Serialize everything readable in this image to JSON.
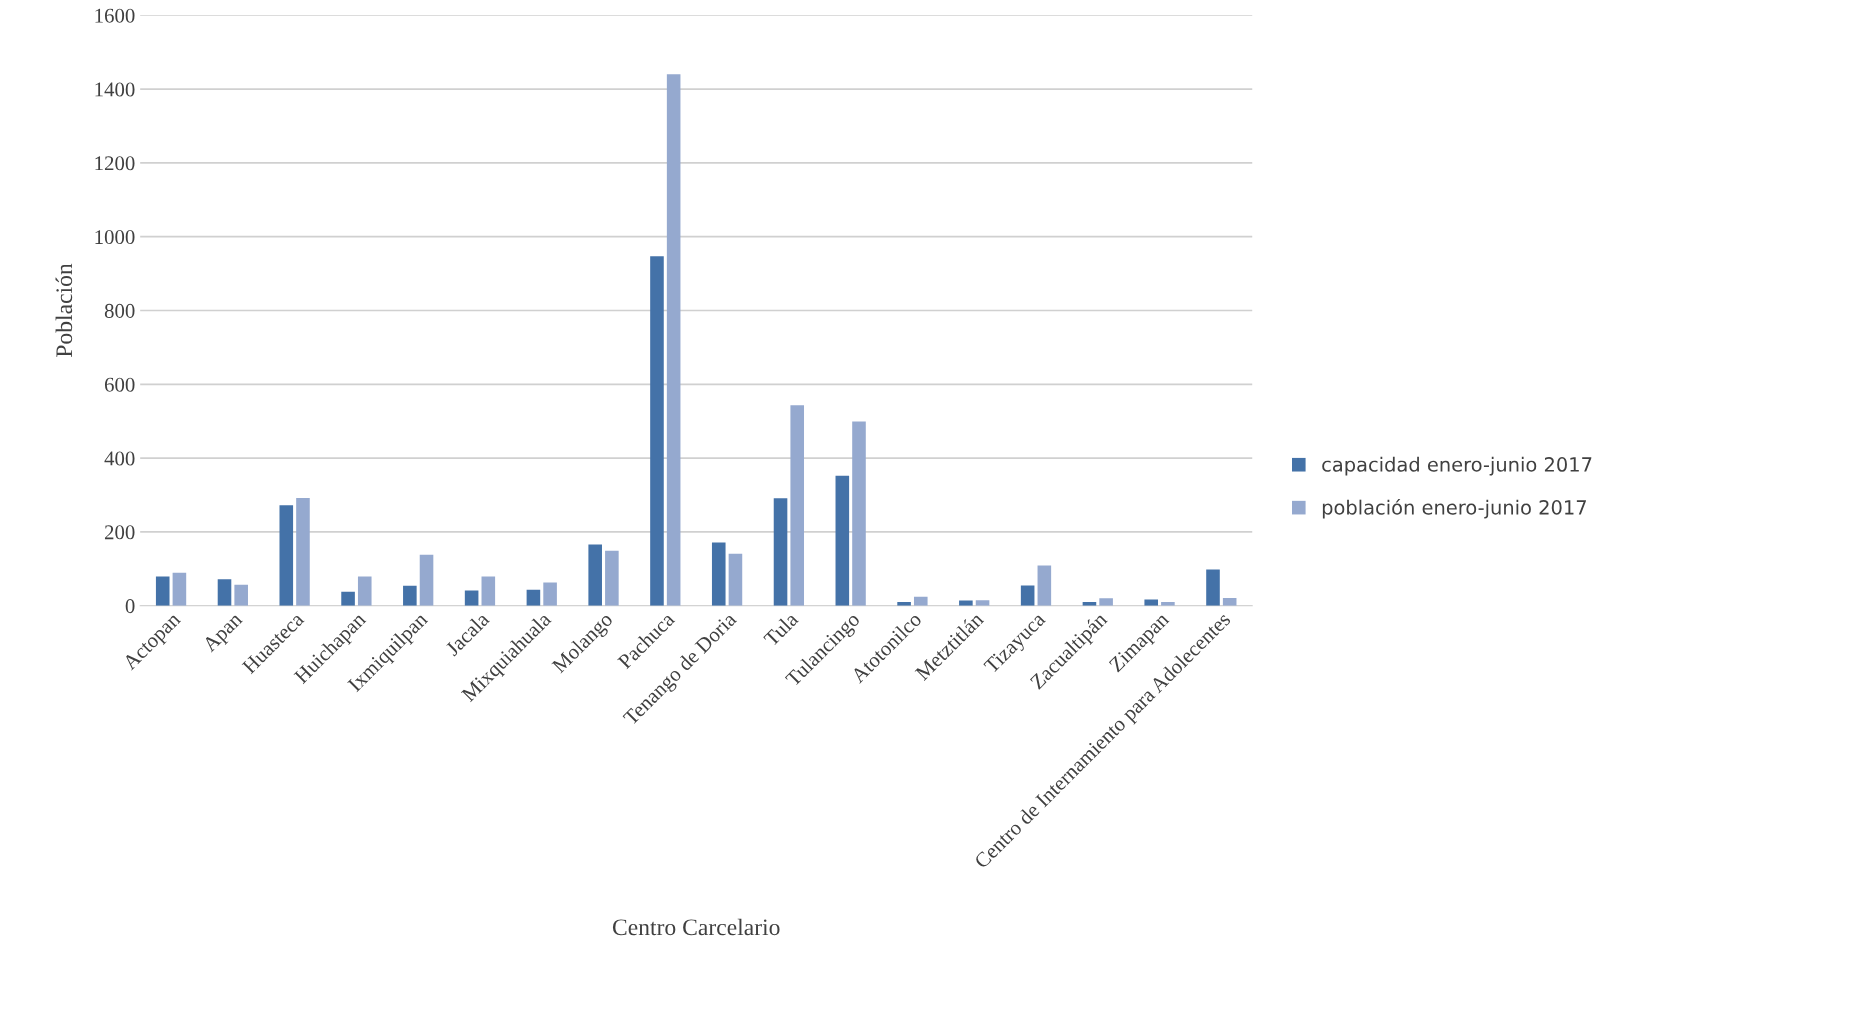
{
  "chart_data": {
    "type": "bar",
    "xlabel": "Centro Carcelario",
    "ylabel": "Población",
    "categories": [
      "Actopan",
      "Apan",
      "Huasteca",
      "Huichapan",
      "Ixmiquilpan",
      "Jacala",
      "Mixquiahuala",
      "Molango",
      "Pachuca",
      "Tenango de Doria",
      "Tula",
      "Tulancingo",
      "Atotonilco",
      "Metztitlán",
      "Tizayuca",
      "Zacualtipán",
      "Zimapan",
      "Centro de Internamiento para Adolecentes"
    ],
    "series": [
      {
        "name": "capacidad enero-junio 2017",
        "color": "#4472a8",
        "values": [
          79,
          72,
          272,
          38,
          54,
          41,
          43,
          166,
          947,
          171,
          291,
          352,
          10,
          14,
          55,
          10,
          17,
          98
        ]
      },
      {
        "name": "población enero-junio 2017",
        "color": "#95a9cf",
        "values": [
          89,
          57,
          292,
          79,
          138,
          79,
          63,
          149,
          1440,
          141,
          543,
          499,
          24,
          15,
          109,
          20,
          10,
          21
        ]
      }
    ],
    "ylim": [
      0,
      1600
    ],
    "yticks": [
      0,
      200,
      400,
      600,
      800,
      1000,
      1200,
      1400,
      1600
    ],
    "grid": "y",
    "legend": "right"
  }
}
